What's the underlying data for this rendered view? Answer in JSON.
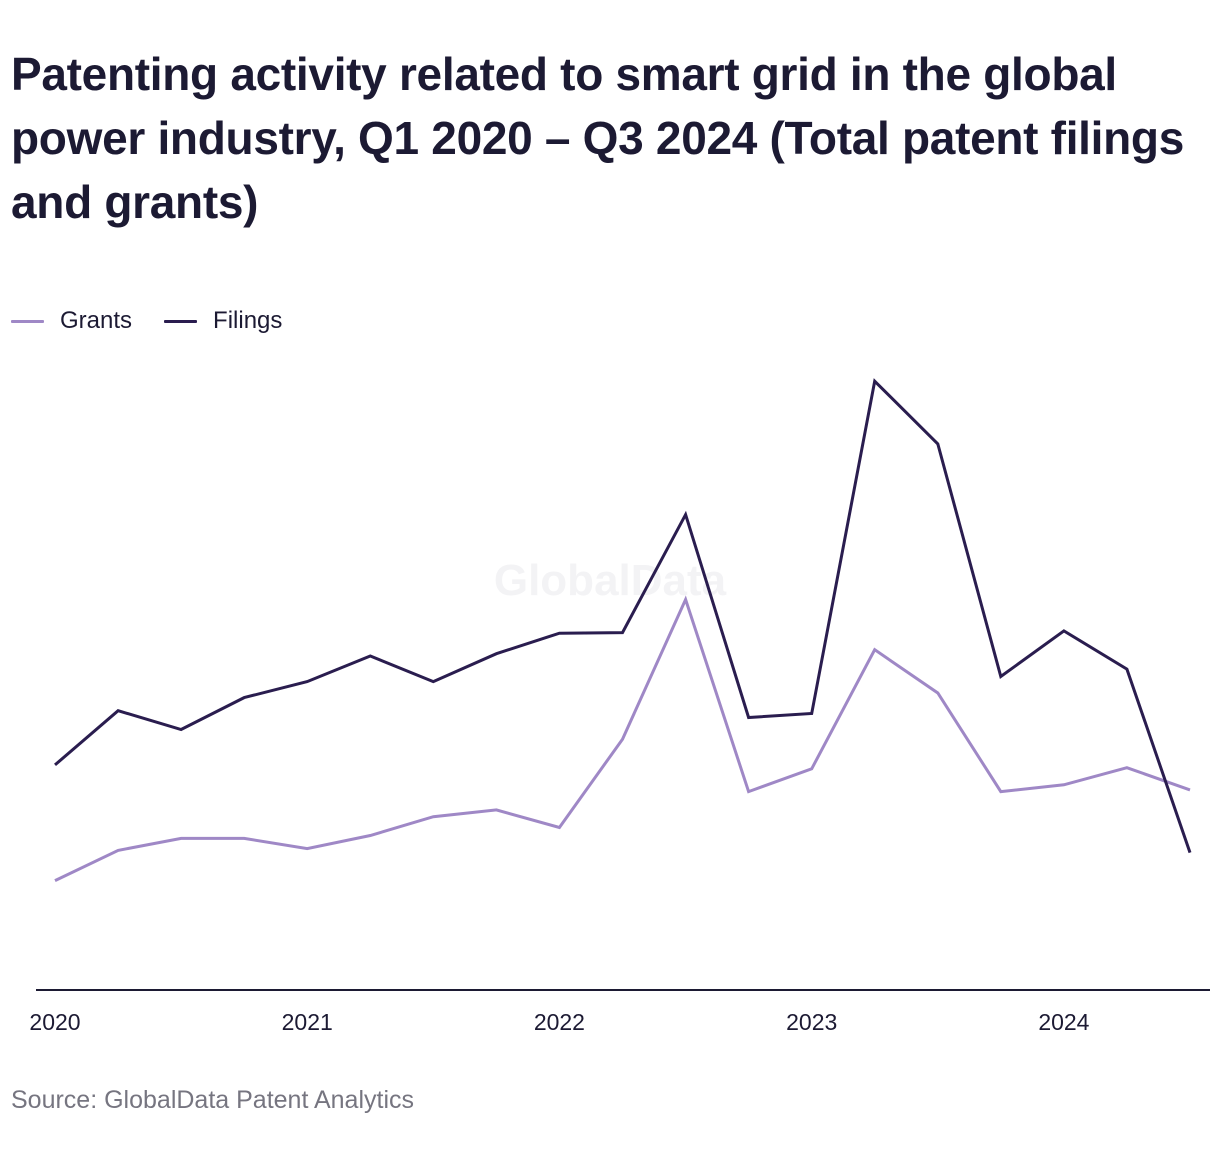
{
  "title": "Patenting activity related to smart grid in the global power industry, Q1 2020 – Q3 2024 (Total patent filings and grants)",
  "source": "Source: GlobalData Patent Analytics",
  "watermark": "GlobalData",
  "legend": [
    {
      "label": "Grants",
      "color": "#9f88c6"
    },
    {
      "label": "Filings",
      "color": "#2a1d4f"
    }
  ],
  "chart_data": {
    "type": "line",
    "title": "Patenting activity related to smart grid in the global power industry, Q1 2020 – Q3 2024 (Total patent filings and grants)",
    "x": [
      "Q1 2020",
      "Q2 2020",
      "Q3 2020",
      "Q4 2020",
      "Q1 2021",
      "Q2 2021",
      "Q3 2021",
      "Q4 2021",
      "Q1 2022",
      "Q2 2022",
      "Q3 2022",
      "Q4 2022",
      "Q1 2023",
      "Q2 2023",
      "Q3 2023",
      "Q4 2023",
      "Q1 2024",
      "Q2 2024",
      "Q3 2024"
    ],
    "x_tick_labels": [
      "2020",
      "2021",
      "2022",
      "2023",
      "2024"
    ],
    "x_tick_positions": [
      "Q1 2020",
      "Q1 2021",
      "Q1 2022",
      "Q1 2023",
      "Q1 2024"
    ],
    "ylim": [
      0,
      1000
    ],
    "y_axis_shown": false,
    "grid": false,
    "legend_position": "top-left",
    "series": [
      {
        "name": "Grants",
        "color": "#9f88c6",
        "values": [
          192,
          245,
          266,
          266,
          248,
          271,
          304,
          316,
          285,
          440,
          685,
          348,
          388,
          597,
          521,
          348,
          360,
          390,
          351
        ]
      },
      {
        "name": "Filings",
        "color": "#2a1d4f",
        "values": [
          395,
          490,
          457,
          513,
          541,
          586,
          541,
          590,
          626,
          627,
          834,
          478,
          485,
          1068,
          958,
          550,
          630,
          563,
          241
        ]
      }
    ]
  }
}
